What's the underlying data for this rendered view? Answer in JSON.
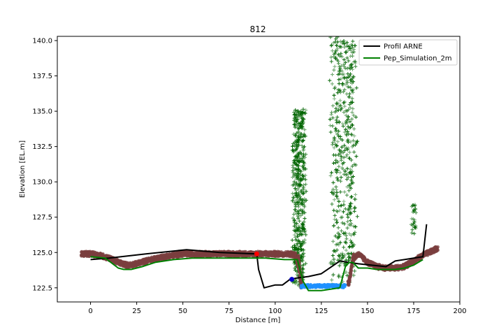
{
  "chart_data": {
    "type": "line",
    "title": "812",
    "xlabel": "Distance [m]",
    "ylabel": "Elevation [EL.m]",
    "xlim": [
      -18,
      200
    ],
    "ylim": [
      121.5,
      140.3
    ],
    "xticks": [
      0,
      25,
      50,
      75,
      100,
      125,
      150,
      175,
      200
    ],
    "yticks": [
      122.5,
      125.0,
      127.5,
      130.0,
      132.5,
      135.0,
      137.5,
      140.0
    ],
    "xtick_labels": [
      "0",
      "25",
      "50",
      "75",
      "100",
      "125",
      "150",
      "175",
      "200"
    ],
    "ytick_labels": [
      "122.5",
      "125.0",
      "127.5",
      "130.0",
      "132.5",
      "135.0",
      "137.5",
      "140.0"
    ],
    "grid": false,
    "legend_position": "top-right",
    "series": [
      {
        "name": "Profil ARNE",
        "color": "#000000",
        "x": [
          0,
          10,
          30,
          52,
          70,
          90,
          91,
          94,
          100,
          104,
          108,
          112,
          118,
          125,
          135,
          145,
          160,
          165,
          170,
          175,
          180,
          182
        ],
        "y": [
          124.5,
          124.6,
          124.9,
          125.2,
          125.0,
          124.9,
          123.8,
          122.5,
          122.7,
          122.7,
          123.1,
          123.2,
          123.3,
          123.5,
          124.4,
          124.2,
          124.0,
          124.4,
          124.5,
          124.6,
          124.7,
          127.0
        ]
      },
      {
        "name": "Pep_Simulation_2m",
        "color": "#008000",
        "x": [
          0,
          8,
          12,
          15,
          18,
          22,
          28,
          35,
          45,
          55,
          65,
          75,
          85,
          95,
          105,
          112,
          113,
          115,
          118,
          125,
          130,
          135,
          138,
          140,
          142,
          145,
          150,
          155,
          160,
          165,
          170,
          175,
          180
        ],
        "y": [
          124.7,
          124.6,
          124.2,
          123.9,
          123.8,
          123.8,
          124.0,
          124.3,
          124.5,
          124.6,
          124.6,
          124.6,
          124.6,
          124.6,
          124.5,
          124.5,
          124.0,
          123.0,
          122.3,
          122.3,
          122.4,
          122.5,
          124.0,
          124.3,
          124.3,
          123.9,
          123.9,
          123.8,
          123.8,
          123.8,
          123.9,
          124.1,
          124.5
        ]
      }
    ],
    "ground_points": {
      "color": "#7b3f3f",
      "x": [
        -5,
        0,
        5,
        10,
        15,
        20,
        25,
        30,
        40,
        50,
        60,
        70,
        80,
        90,
        100,
        108,
        111,
        113,
        114,
        140,
        142,
        145,
        150,
        155,
        160,
        165,
        170,
        175,
        180,
        185,
        188
      ],
      "y": [
        124.9,
        124.9,
        124.8,
        124.6,
        124.3,
        124.1,
        124.2,
        124.4,
        124.7,
        124.9,
        124.9,
        124.9,
        124.9,
        124.9,
        124.9,
        124.9,
        124.8,
        123.8,
        122.6,
        122.8,
        124.5,
        124.9,
        124.3,
        124.0,
        123.9,
        123.9,
        124.0,
        124.4,
        124.8,
        125.1,
        125.3
      ]
    },
    "water_points": {
      "color": "#1e90ff",
      "x": [
        114,
        116,
        118,
        120,
        122,
        124,
        126,
        128,
        130,
        132,
        134,
        136,
        138
      ],
      "y": [
        122.55,
        122.6,
        122.65,
        122.6,
        122.7,
        122.6,
        122.65,
        122.6,
        122.7,
        122.6,
        122.65,
        122.6,
        122.6
      ]
    },
    "vegetation_clusters": [
      {
        "color": "#006400",
        "x_center": 113,
        "x_spread": 4,
        "y_min": 122.6,
        "y_max": 135.2
      },
      {
        "color": "#006400",
        "x_center": 137,
        "x_spread": 8,
        "y_min": 122.6,
        "y_max": 140.3
      },
      {
        "color": "#006400",
        "x_center": 175,
        "x_spread": 1.5,
        "y_min": 126.3,
        "y_max": 128.7
      }
    ],
    "markers": [
      {
        "name": "red-marker",
        "color": "#ff0000",
        "x": 90,
        "y": 124.9
      },
      {
        "name": "blue-marker",
        "color": "#0000cd",
        "x": 109,
        "y": 123.1
      }
    ]
  }
}
